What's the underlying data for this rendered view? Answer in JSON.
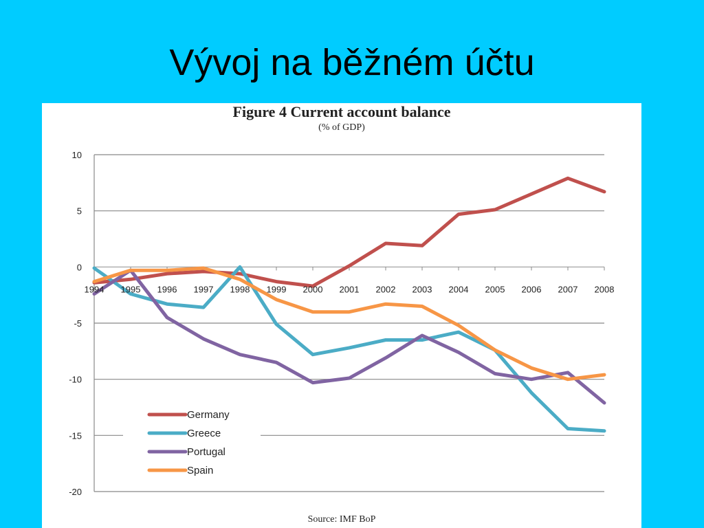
{
  "slide": {
    "title": "Vývoj na běžném účtu"
  },
  "chart_data": {
    "type": "line",
    "title": "Figure 4  Current account balance",
    "subtitle": "(% of GDP)",
    "source": "Source: IMF BoP",
    "xlabel": "",
    "ylabel": "",
    "ylim": [
      -20,
      10
    ],
    "yticks": [
      10,
      5,
      0,
      -5,
      -10,
      -15,
      -20
    ],
    "categories": [
      "1994",
      "1995",
      "1996",
      "1997",
      "1998",
      "1999",
      "2000",
      "2001",
      "2002",
      "2003",
      "2004",
      "2005",
      "2006",
      "2007",
      "2008"
    ],
    "grid": true,
    "legend_position": "bottom-left",
    "series": [
      {
        "name": "Germany",
        "color": "#c0504d",
        "values": [
          -1.4,
          -1.1,
          -0.6,
          -0.4,
          -0.6,
          -1.3,
          -1.7,
          0.1,
          2.1,
          1.9,
          4.7,
          5.1,
          6.5,
          7.9,
          6.7
        ]
      },
      {
        "name": "Greece",
        "color": "#4bacc6",
        "values": [
          -0.1,
          -2.4,
          -3.3,
          -3.6,
          0.0,
          -5.1,
          -7.8,
          -7.2,
          -6.5,
          -6.5,
          -5.8,
          -7.4,
          -11.2,
          -14.4,
          -14.6
        ]
      },
      {
        "name": "Portugal",
        "color": "#8064a2",
        "values": [
          -2.4,
          -0.3,
          -4.5,
          -6.4,
          -7.8,
          -8.5,
          -10.3,
          -9.9,
          -8.1,
          -6.1,
          -7.6,
          -9.5,
          -10.0,
          -9.4,
          -12.1
        ]
      },
      {
        "name": "Spain",
        "color": "#f79646",
        "values": [
          -1.3,
          -0.3,
          -0.3,
          -0.1,
          -1.1,
          -2.9,
          -4.0,
          -4.0,
          -3.3,
          -3.5,
          -5.2,
          -7.4,
          -9.0,
          -10.0,
          -9.6
        ]
      }
    ]
  }
}
